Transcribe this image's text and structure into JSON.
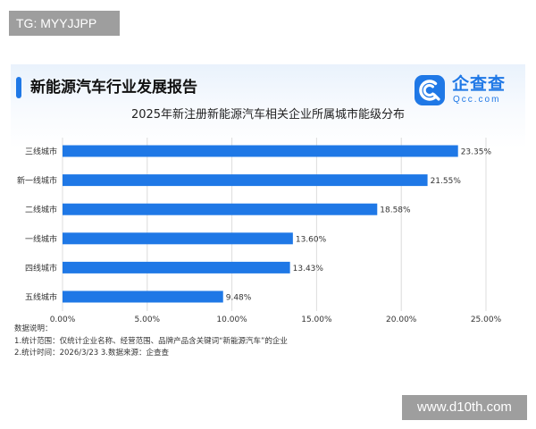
{
  "watermark_top": "TG: MYYJJPP",
  "watermark_bottom": "www.d10th.com",
  "report": {
    "title": "新能源汽车行业发展报告"
  },
  "logo": {
    "name": "企查查",
    "domain": "Qcc.com",
    "icon": "qcc-logo-icon"
  },
  "notes": {
    "heading": "数据说明：",
    "line1": "1.统计范围：仅统计企业名称、经营范围、品牌产品含关键词“新能源汽车”的企业",
    "line2": "2.统计时间：2026/3/23  3.数据来源：企查查"
  },
  "chart_data": {
    "type": "bar",
    "orientation": "horizontal",
    "title": "2025年新注册新能源汽车相关企业所属城市能级分布",
    "categories": [
      "三线城市",
      "新一线城市",
      "二线城市",
      "一线城市",
      "四线城市",
      "五线城市"
    ],
    "values": [
      23.35,
      21.55,
      18.58,
      13.6,
      13.43,
      9.48
    ],
    "value_labels": [
      "23.35%",
      "21.55%",
      "18.58%",
      "13.60%",
      "13.43%",
      "9.48%"
    ],
    "xlim": [
      0,
      25
    ],
    "xticks": [
      0,
      5,
      10,
      15,
      20,
      25
    ],
    "xtick_labels": [
      "0.00%",
      "5.00%",
      "10.00%",
      "15.00%",
      "20.00%",
      "25.00%"
    ],
    "grid": "vertical",
    "bar_color": "#1f78e6",
    "grid_color": "#dcdcdc",
    "xlabel": "",
    "ylabel": ""
  }
}
